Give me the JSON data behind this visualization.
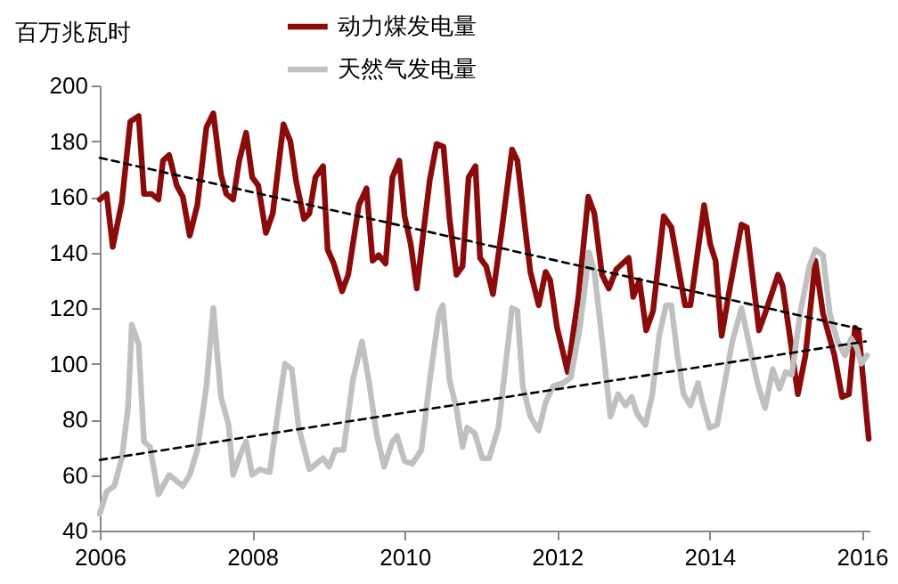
{
  "chart_data": {
    "type": "line",
    "ylabel": "百万兆瓦时",
    "xlim": [
      2006,
      2016.1
    ],
    "xticks": [
      2006,
      2008,
      2010,
      2012,
      2014,
      2016
    ],
    "ylim": [
      40,
      200
    ],
    "yticks": [
      40,
      60,
      80,
      100,
      120,
      140,
      160,
      180,
      200
    ],
    "grid": false,
    "legend": "top",
    "series": [
      {
        "name": "动力煤发电量",
        "color": "#8b0a0a",
        "x": [
          2006.0,
          2006.09,
          2006.17,
          2006.29,
          2006.4,
          2006.51,
          2006.58,
          2006.68,
          2006.77,
          2006.83,
          2006.91,
          2007.01,
          2007.09,
          2007.18,
          2007.28,
          2007.4,
          2007.49,
          2007.59,
          2007.66,
          2007.75,
          2007.83,
          2007.92,
          2008.0,
          2008.08,
          2008.18,
          2008.27,
          2008.41,
          2008.5,
          2008.58,
          2008.68,
          2008.75,
          2008.83,
          2008.93,
          2008.99,
          2009.07,
          2009.18,
          2009.26,
          2009.4,
          2009.5,
          2009.58,
          2009.66,
          2009.75,
          2009.84,
          2009.93,
          2010.0,
          2010.08,
          2010.16,
          2010.25,
          2010.33,
          2010.42,
          2010.51,
          2010.59,
          2010.68,
          2010.76,
          2010.84,
          2010.93,
          2010.99,
          2011.07,
          2011.16,
          2011.27,
          2011.41,
          2011.48,
          2011.58,
          2011.65,
          2011.76,
          2011.85,
          2011.91,
          2012.0,
          2012.14,
          2012.28,
          2012.41,
          2012.49,
          2012.59,
          2012.68,
          2012.78,
          2012.86,
          2012.94,
          2013.0,
          2013.08,
          2013.17,
          2013.26,
          2013.4,
          2013.5,
          2013.68,
          2013.75,
          2013.93,
          2014.01,
          2014.08,
          2014.16,
          2014.26,
          2014.42,
          2014.49,
          2014.65,
          2014.73,
          2014.9,
          2014.96,
          2015.08,
          2015.16,
          2015.26,
          2015.39,
          2015.49,
          2015.64,
          2015.74,
          2015.83,
          2015.91,
          2015.96,
          2016.09
        ],
        "values": [
          159,
          161,
          142,
          158,
          187,
          189,
          161,
          161,
          159,
          173,
          175,
          164,
          160,
          146,
          157,
          185,
          190,
          168,
          161,
          159,
          173,
          183,
          167,
          164,
          147,
          154,
          186,
          180,
          165,
          152,
          154,
          167,
          171,
          141,
          136,
          126,
          132,
          157,
          163,
          137,
          139,
          136,
          167,
          173,
          153,
          143,
          127,
          148,
          166,
          179,
          178,
          152,
          132,
          135,
          167,
          171,
          138,
          135,
          125,
          147,
          177,
          173,
          149,
          133,
          121,
          133,
          130,
          113,
          97,
          124,
          160,
          154,
          132,
          127,
          134,
          136,
          138,
          124,
          130,
          112,
          119,
          153,
          149,
          121,
          121,
          157,
          143,
          137,
          110,
          126,
          150,
          149,
          112,
          118,
          132,
          128,
          105,
          89,
          103,
          137,
          118,
          103,
          88,
          89,
          113,
          111,
          73
        ]
      },
      {
        "name": "天然气发电量",
        "color": "#c0c0c0",
        "x": [
          2006.0,
          2006.09,
          2006.19,
          2006.29,
          2006.37,
          2006.42,
          2006.51,
          2006.58,
          2006.66,
          2006.77,
          2006.91,
          2007.09,
          2007.18,
          2007.28,
          2007.4,
          2007.49,
          2007.59,
          2007.69,
          2007.75,
          2007.84,
          2007.92,
          2008.0,
          2008.1,
          2008.23,
          2008.33,
          2008.43,
          2008.52,
          2008.61,
          2008.75,
          2008.93,
          2009.01,
          2009.09,
          2009.2,
          2009.32,
          2009.44,
          2009.53,
          2009.63,
          2009.73,
          2009.84,
          2009.9,
          2010.0,
          2010.1,
          2010.22,
          2010.33,
          2010.45,
          2010.5,
          2010.59,
          2010.68,
          2010.76,
          2010.82,
          2010.92,
          2011.02,
          2011.11,
          2011.23,
          2011.34,
          2011.41,
          2011.48,
          2011.55,
          2011.65,
          2011.76,
          2011.85,
          2011.95,
          2012.08,
          2012.18,
          2012.3,
          2012.42,
          2012.49,
          2012.59,
          2012.7,
          2012.8,
          2012.9,
          2012.98,
          2013.05,
          2013.16,
          2013.25,
          2013.34,
          2013.43,
          2013.5,
          2013.58,
          2013.66,
          2013.75,
          2013.85,
          2013.91,
          2014.0,
          2014.1,
          2014.18,
          2014.3,
          2014.42,
          2014.49,
          2014.63,
          2014.73,
          2014.83,
          2014.92,
          2015.0,
          2015.08,
          2015.19,
          2015.31,
          2015.39,
          2015.49,
          2015.58,
          2015.68,
          2015.78,
          2015.86,
          2015.93,
          2015.99,
          2016.07
        ],
        "values": [
          46,
          54,
          56,
          66,
          84,
          114,
          107,
          72,
          70,
          53,
          60,
          56,
          60,
          69,
          92,
          120,
          88,
          78,
          60,
          67,
          72,
          60,
          62,
          61,
          81,
          100,
          98,
          77,
          62,
          66,
          63,
          69,
          69,
          94,
          108,
          94,
          75,
          63,
          72,
          74,
          65,
          64,
          69,
          94,
          118,
          121,
          94,
          84,
          70,
          77,
          75,
          66,
          66,
          77,
          103,
          120,
          119,
          92,
          81,
          76,
          86,
          92,
          93,
          95,
          113,
          140,
          133,
          109,
          81,
          89,
          85,
          88,
          82,
          78,
          89,
          110,
          121,
          121,
          103,
          89,
          85,
          93,
          86,
          77,
          78,
          90,
          108,
          120,
          111,
          93,
          84,
          98,
          91,
          97,
          96,
          118,
          135,
          141,
          139,
          118,
          108,
          103,
          109,
          106,
          100,
          103
        ]
      },
      {
        "color": "#000000",
        "line_style": "dashed",
        "x": [
          2006,
          2016.05
        ],
        "values": [
          174,
          112
        ]
      },
      {
        "color": "#000000",
        "line_style": "dashed",
        "x": [
          2006,
          2016.05
        ],
        "values": [
          65.4,
          108
        ]
      }
    ]
  }
}
